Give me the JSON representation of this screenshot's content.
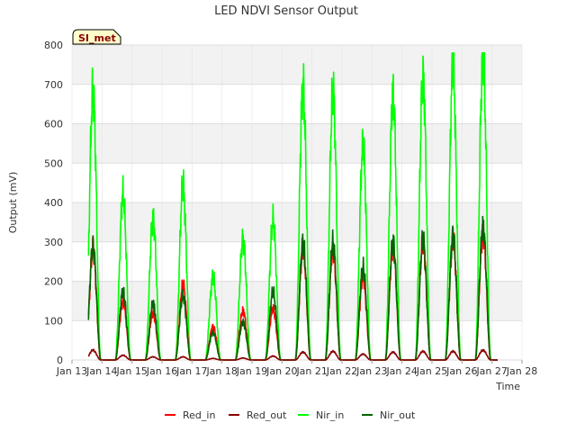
{
  "chart_data": {
    "type": "line",
    "title": "LED NDVI Sensor Output",
    "xlabel": "Time",
    "ylabel": "Output (mV)",
    "badge": "SI_met",
    "x_ticks": [
      "Jan 13",
      "Jan 14",
      "Jan 15",
      "Jan 16",
      "Jan 17",
      "Jan 18",
      "Jan 19",
      "Jan 20",
      "Jan 21",
      "Jan 22",
      "Jan 23",
      "Jan 24",
      "Jan 25",
      "Jan 26",
      "Jan 27",
      "Jan 28"
    ],
    "xlim": [
      13,
      28
    ],
    "ylim": [
      0,
      800
    ],
    "y_ticks": [
      0,
      100,
      200,
      300,
      400,
      500,
      600,
      700,
      800
    ],
    "grid": true,
    "legend_position": "bottom",
    "x_unit": "day of January",
    "series": [
      {
        "name": "Red_in",
        "color": "#ff0000",
        "daily_peaks": [
          {
            "day": 13.7,
            "value": 280
          },
          {
            "day": 14.7,
            "value": 150
          },
          {
            "day": 15.7,
            "value": 120
          },
          {
            "day": 16.7,
            "value": 190
          },
          {
            "day": 17.7,
            "value": 85
          },
          {
            "day": 18.7,
            "value": 125
          },
          {
            "day": 19.7,
            "value": 130
          },
          {
            "day": 20.7,
            "value": 280
          },
          {
            "day": 21.7,
            "value": 280
          },
          {
            "day": 22.7,
            "value": 210
          },
          {
            "day": 23.7,
            "value": 290
          },
          {
            "day": 24.7,
            "value": 300
          },
          {
            "day": 25.7,
            "value": 305
          },
          {
            "day": 26.7,
            "value": 325
          }
        ]
      },
      {
        "name": "Red_out",
        "color": "#8b0000",
        "daily_peaks": [
          {
            "day": 13.7,
            "value": 25
          },
          {
            "day": 14.7,
            "value": 12
          },
          {
            "day": 15.7,
            "value": 8
          },
          {
            "day": 16.7,
            "value": 8
          },
          {
            "day": 17.7,
            "value": 4
          },
          {
            "day": 18.7,
            "value": 5
          },
          {
            "day": 19.7,
            "value": 10
          },
          {
            "day": 20.7,
            "value": 20
          },
          {
            "day": 21.7,
            "value": 22
          },
          {
            "day": 22.7,
            "value": 15
          },
          {
            "day": 23.7,
            "value": 20
          },
          {
            "day": 24.7,
            "value": 22
          },
          {
            "day": 25.7,
            "value": 22
          },
          {
            "day": 26.7,
            "value": 25
          }
        ]
      },
      {
        "name": "Nir_in",
        "color": "#00ff00",
        "daily_peaks": [
          {
            "day": 13.7,
            "value": 685
          },
          {
            "day": 14.7,
            "value": 422
          },
          {
            "day": 15.7,
            "value": 362
          },
          {
            "day": 16.7,
            "value": 443
          },
          {
            "day": 17.7,
            "value": 212
          },
          {
            "day": 18.7,
            "value": 308
          },
          {
            "day": 19.7,
            "value": 355
          },
          {
            "day": 20.7,
            "value": 698
          },
          {
            "day": 21.7,
            "value": 688
          },
          {
            "day": 22.7,
            "value": 545
          },
          {
            "day": 23.7,
            "value": 678
          },
          {
            "day": 24.7,
            "value": 718
          },
          {
            "day": 25.7,
            "value": 745
          },
          {
            "day": 26.7,
            "value": 778
          }
        ]
      },
      {
        "name": "Nir_out",
        "color": "#006400",
        "daily_peaks": [
          {
            "day": 13.7,
            "value": 288
          },
          {
            "day": 14.7,
            "value": 175
          },
          {
            "day": 15.7,
            "value": 145
          },
          {
            "day": 16.7,
            "value": 162
          },
          {
            "day": 17.7,
            "value": 70
          },
          {
            "day": 18.7,
            "value": 97
          },
          {
            "day": 19.7,
            "value": 172
          },
          {
            "day": 20.7,
            "value": 300
          },
          {
            "day": 21.7,
            "value": 298
          },
          {
            "day": 22.7,
            "value": 235
          },
          {
            "day": 23.7,
            "value": 302
          },
          {
            "day": 24.7,
            "value": 306
          },
          {
            "day": 25.7,
            "value": 316
          },
          {
            "day": 26.7,
            "value": 340
          }
        ]
      }
    ]
  }
}
